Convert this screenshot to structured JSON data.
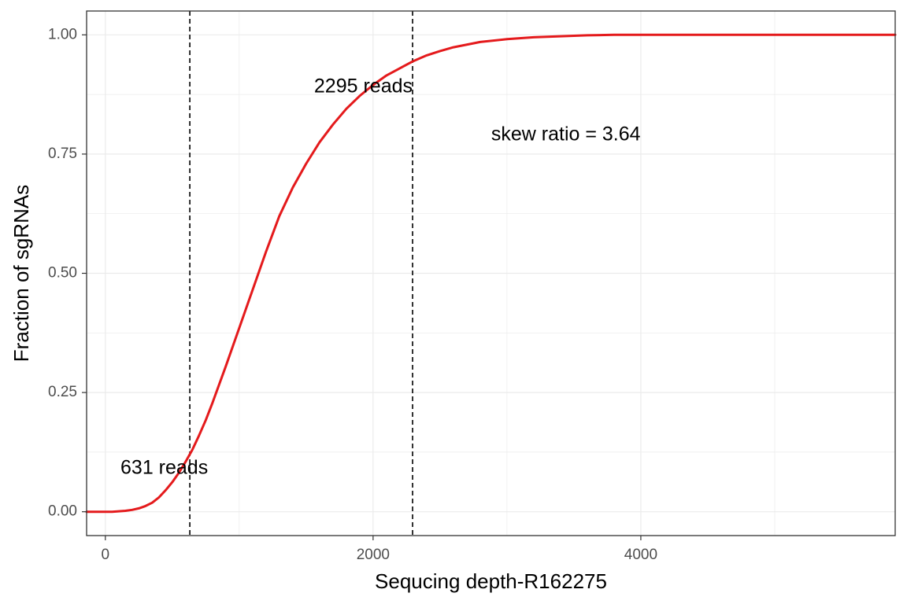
{
  "chart_data": {
    "type": "line",
    "xlabel": "Sequcing depth-R162275",
    "ylabel": "Fraction of sgRNAs",
    "xlim": [
      -140,
      5900
    ],
    "ylim": [
      -0.05,
      1.05
    ],
    "x_ticks": [
      0,
      2000,
      4000
    ],
    "x_tick_labels": [
      "0",
      "2000",
      "4000"
    ],
    "y_ticks": [
      0,
      0.25,
      0.5,
      0.75,
      1.0
    ],
    "y_tick_labels": [
      "0.00",
      "0.25",
      "0.50",
      "0.75",
      "1.00"
    ],
    "grid": true,
    "colors": {
      "line": "#e41a1c",
      "vline": "#000000",
      "grid": "#ebebeb",
      "panel_border": "#333333"
    },
    "series": [
      {
        "x": [
          -140,
          0,
          50,
          100,
          150,
          200,
          250,
          300,
          350,
          400,
          450,
          500,
          550,
          600,
          650,
          700,
          750,
          800,
          900,
          1000,
          1100,
          1200,
          1300,
          1400,
          1500,
          1600,
          1700,
          1800,
          1900,
          2000,
          2100,
          2200,
          2300,
          2400,
          2500,
          2600,
          2800,
          3000,
          3200,
          3400,
          3600,
          3800,
          4000,
          4500,
          5000,
          5500,
          5900
        ],
        "y": [
          0,
          0,
          0,
          0.001,
          0.002,
          0.004,
          0.007,
          0.012,
          0.019,
          0.03,
          0.045,
          0.062,
          0.082,
          0.105,
          0.13,
          0.16,
          0.192,
          0.228,
          0.305,
          0.385,
          0.465,
          0.545,
          0.62,
          0.68,
          0.73,
          0.775,
          0.812,
          0.845,
          0.872,
          0.895,
          0.915,
          0.93,
          0.945,
          0.957,
          0.966,
          0.974,
          0.985,
          0.991,
          0.995,
          0.997,
          0.999,
          1.0,
          1.0,
          1.0,
          1.0,
          1.0,
          1.0
        ]
      }
    ],
    "vlines": [
      631,
      2295
    ],
    "annotations": [
      {
        "text": "2295 reads",
        "x": 2295,
        "y": 0.89,
        "anchor": "end"
      },
      {
        "text": "skew ratio = 3.64",
        "x": 3440,
        "y": 0.79,
        "anchor": "middle"
      },
      {
        "text": "631 reads",
        "x": 440,
        "y": 0.09,
        "anchor": "middle"
      }
    ]
  }
}
